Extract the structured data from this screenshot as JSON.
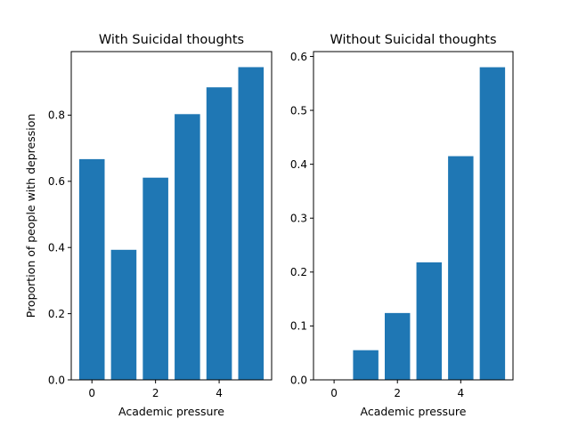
{
  "chart_data": [
    {
      "type": "bar",
      "title": "With Suicidal thoughts",
      "xlabel": "Academic pressure",
      "ylabel": "Proportion of people with depression",
      "x": [
        0,
        1,
        2,
        3,
        4,
        5
      ],
      "values": [
        0.667,
        0.393,
        0.611,
        0.803,
        0.884,
        0.945
      ],
      "xticks": [
        0,
        2,
        4
      ],
      "yticks": [
        0.0,
        0.2,
        0.4,
        0.6,
        0.8
      ],
      "xlim": [
        -0.65,
        5.65
      ],
      "ylim": [
        0,
        0.992
      ],
      "grid": false,
      "bar_color": "#1f77b4"
    },
    {
      "type": "bar",
      "title": "Without Suicidal thoughts",
      "xlabel": "Academic pressure",
      "ylabel": "",
      "x": [
        0,
        1,
        2,
        3,
        4,
        5
      ],
      "values": [
        0.0,
        0.055,
        0.124,
        0.218,
        0.415,
        0.58
      ],
      "xticks": [
        0,
        2,
        4
      ],
      "yticks": [
        0.0,
        0.1,
        0.2,
        0.3,
        0.4,
        0.5,
        0.6
      ],
      "xlim": [
        -0.65,
        5.65
      ],
      "ylim": [
        0,
        0.609
      ],
      "grid": false,
      "bar_color": "#1f77b4"
    }
  ]
}
